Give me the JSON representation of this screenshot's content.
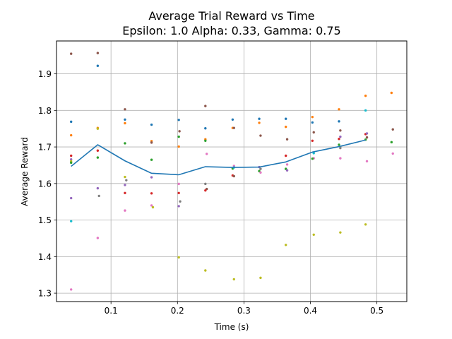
{
  "chart_data": {
    "type": "scatter",
    "title_lines": [
      "Average Trial Reward vs Time",
      "Epsilon: 1.0 Alpha: 0.33, Gamma: 0.75"
    ],
    "xlabel": "Time (s)",
    "ylabel": "Average Reward",
    "xlim": [
      0.018,
      0.545
    ],
    "ylim": [
      1.277,
      1.99
    ],
    "xticks": [
      0.1,
      0.2,
      0.3,
      0.4,
      0.5
    ],
    "yticks": [
      1.3,
      1.4,
      1.5,
      1.6,
      1.7,
      1.8,
      1.9
    ],
    "xtick_labels": [
      "0.1",
      "0.2",
      "0.3",
      "0.4",
      "0.5"
    ],
    "ytick_labels": [
      "1.3",
      "1.4",
      "1.5",
      "1.6",
      "1.7",
      "1.8",
      "1.9"
    ],
    "grid": true,
    "line_color": "#1f77b4",
    "mean_line": {
      "x": [
        0.04,
        0.08,
        0.121,
        0.161,
        0.202,
        0.242,
        0.283,
        0.323,
        0.363,
        0.403,
        0.443,
        0.483
      ],
      "y": [
        1.647,
        1.706,
        1.662,
        1.628,
        1.624,
        1.646,
        1.644,
        1.645,
        1.659,
        1.686,
        1.701,
        1.719
      ]
    },
    "scatter_points": [
      {
        "x": 0.04,
        "y": 1.955,
        "color": "#8c564b"
      },
      {
        "x": 0.04,
        "y": 1.769,
        "color": "#1f77b4"
      },
      {
        "x": 0.04,
        "y": 1.732,
        "color": "#ff7f0e"
      },
      {
        "x": 0.04,
        "y": 1.676,
        "color": "#d62728"
      },
      {
        "x": 0.04,
        "y": 1.666,
        "color": "#9467bd"
      },
      {
        "x": 0.04,
        "y": 1.661,
        "color": "#bcbd22"
      },
      {
        "x": 0.04,
        "y": 1.657,
        "color": "#2ca02c"
      },
      {
        "x": 0.04,
        "y": 1.56,
        "color": "#9467bd"
      },
      {
        "x": 0.04,
        "y": 1.497,
        "color": "#17becf"
      },
      {
        "x": 0.04,
        "y": 1.31,
        "color": "#e377c2"
      },
      {
        "x": 0.08,
        "y": 1.957,
        "color": "#8c564b"
      },
      {
        "x": 0.08,
        "y": 1.922,
        "color": "#1f77b4"
      },
      {
        "x": 0.08,
        "y": 1.752,
        "color": "#ff7f0e"
      },
      {
        "x": 0.08,
        "y": 1.75,
        "color": "#bcbd22"
      },
      {
        "x": 0.08,
        "y": 1.69,
        "color": "#d62728"
      },
      {
        "x": 0.08,
        "y": 1.671,
        "color": "#2ca02c"
      },
      {
        "x": 0.08,
        "y": 1.587,
        "color": "#9467bd"
      },
      {
        "x": 0.082,
        "y": 1.566,
        "color": "#7f7f7f"
      },
      {
        "x": 0.08,
        "y": 1.451,
        "color": "#e377c2"
      },
      {
        "x": 0.121,
        "y": 1.803,
        "color": "#8c564b"
      },
      {
        "x": 0.121,
        "y": 1.775,
        "color": "#1f77b4"
      },
      {
        "x": 0.121,
        "y": 1.765,
        "color": "#ff7f0e"
      },
      {
        "x": 0.121,
        "y": 1.71,
        "color": "#2ca02c"
      },
      {
        "x": 0.121,
        "y": 1.618,
        "color": "#bcbd22"
      },
      {
        "x": 0.123,
        "y": 1.609,
        "color": "#7f7f7f"
      },
      {
        "x": 0.121,
        "y": 1.596,
        "color": "#9467bd"
      },
      {
        "x": 0.121,
        "y": 1.574,
        "color": "#d62728"
      },
      {
        "x": 0.121,
        "y": 1.526,
        "color": "#e377c2"
      },
      {
        "x": 0.161,
        "y": 1.761,
        "color": "#1f77b4"
      },
      {
        "x": 0.161,
        "y": 1.716,
        "color": "#ff7f0e"
      },
      {
        "x": 0.161,
        "y": 1.712,
        "color": "#8c564b"
      },
      {
        "x": 0.161,
        "y": 1.665,
        "color": "#2ca02c"
      },
      {
        "x": 0.161,
        "y": 1.617,
        "color": "#9467bd"
      },
      {
        "x": 0.161,
        "y": 1.573,
        "color": "#d62728"
      },
      {
        "x": 0.161,
        "y": 1.54,
        "color": "#e377c2"
      },
      {
        "x": 0.163,
        "y": 1.535,
        "color": "#bcbd22"
      },
      {
        "x": 0.202,
        "y": 1.774,
        "color": "#1f77b4"
      },
      {
        "x": 0.203,
        "y": 1.743,
        "color": "#8c564b"
      },
      {
        "x": 0.202,
        "y": 1.728,
        "color": "#2ca02c"
      },
      {
        "x": 0.202,
        "y": 1.701,
        "color": "#ff7f0e"
      },
      {
        "x": 0.202,
        "y": 1.599,
        "color": "#e377c2"
      },
      {
        "x": 0.202,
        "y": 1.574,
        "color": "#d62728"
      },
      {
        "x": 0.204,
        "y": 1.551,
        "color": "#7f7f7f"
      },
      {
        "x": 0.202,
        "y": 1.538,
        "color": "#9467bd"
      },
      {
        "x": 0.202,
        "y": 1.398,
        "color": "#bcbd22"
      },
      {
        "x": 0.242,
        "y": 1.812,
        "color": "#8c564b"
      },
      {
        "x": 0.242,
        "y": 1.751,
        "color": "#1f77b4"
      },
      {
        "x": 0.242,
        "y": 1.721,
        "color": "#ff7f0e"
      },
      {
        "x": 0.242,
        "y": 1.717,
        "color": "#2ca02c"
      },
      {
        "x": 0.244,
        "y": 1.681,
        "color": "#e377c2"
      },
      {
        "x": 0.242,
        "y": 1.599,
        "color": "#7f7f7f"
      },
      {
        "x": 0.244,
        "y": 1.585,
        "color": "#8c564b"
      },
      {
        "x": 0.242,
        "y": 1.581,
        "color": "#d62728"
      },
      {
        "x": 0.242,
        "y": 1.362,
        "color": "#bcbd22"
      },
      {
        "x": 0.283,
        "y": 1.775,
        "color": "#1f77b4"
      },
      {
        "x": 0.283,
        "y": 1.752,
        "color": "#ff7f0e"
      },
      {
        "x": 0.285,
        "y": 1.752,
        "color": "#8c564b"
      },
      {
        "x": 0.285,
        "y": 1.648,
        "color": "#e377c2"
      },
      {
        "x": 0.283,
        "y": 1.641,
        "color": "#2ca02c"
      },
      {
        "x": 0.285,
        "y": 1.644,
        "color": "#17becf"
      },
      {
        "x": 0.283,
        "y": 1.622,
        "color": "#d62728"
      },
      {
        "x": 0.285,
        "y": 1.62,
        "color": "#8c564b"
      },
      {
        "x": 0.285,
        "y": 1.338,
        "color": "#bcbd22"
      },
      {
        "x": 0.323,
        "y": 1.777,
        "color": "#1f77b4"
      },
      {
        "x": 0.323,
        "y": 1.766,
        "color": "#ff7f0e"
      },
      {
        "x": 0.325,
        "y": 1.731,
        "color": "#8c564b"
      },
      {
        "x": 0.323,
        "y": 1.645,
        "color": "#9467bd"
      },
      {
        "x": 0.325,
        "y": 1.64,
        "color": "#7f7f7f"
      },
      {
        "x": 0.323,
        "y": 1.634,
        "color": "#2ca02c"
      },
      {
        "x": 0.325,
        "y": 1.63,
        "color": "#e377c2"
      },
      {
        "x": 0.325,
        "y": 1.342,
        "color": "#bcbd22"
      },
      {
        "x": 0.363,
        "y": 1.777,
        "color": "#1f77b4"
      },
      {
        "x": 0.363,
        "y": 1.755,
        "color": "#ff7f0e"
      },
      {
        "x": 0.365,
        "y": 1.721,
        "color": "#8c564b"
      },
      {
        "x": 0.363,
        "y": 1.676,
        "color": "#d62728"
      },
      {
        "x": 0.365,
        "y": 1.652,
        "color": "#e377c2"
      },
      {
        "x": 0.363,
        "y": 1.64,
        "color": "#2ca02c"
      },
      {
        "x": 0.365,
        "y": 1.636,
        "color": "#9467bd"
      },
      {
        "x": 0.363,
        "y": 1.432,
        "color": "#bcbd22"
      },
      {
        "x": 0.403,
        "y": 1.782,
        "color": "#ff7f0e"
      },
      {
        "x": 0.403,
        "y": 1.767,
        "color": "#1f77b4"
      },
      {
        "x": 0.405,
        "y": 1.74,
        "color": "#8c564b"
      },
      {
        "x": 0.403,
        "y": 1.717,
        "color": "#d62728"
      },
      {
        "x": 0.405,
        "y": 1.683,
        "color": "#17becf"
      },
      {
        "x": 0.405,
        "y": 1.669,
        "color": "#e377c2"
      },
      {
        "x": 0.403,
        "y": 1.668,
        "color": "#2ca02c"
      },
      {
        "x": 0.405,
        "y": 1.46,
        "color": "#bcbd22"
      },
      {
        "x": 0.443,
        "y": 1.803,
        "color": "#ff7f0e"
      },
      {
        "x": 0.443,
        "y": 1.77,
        "color": "#1f77b4"
      },
      {
        "x": 0.445,
        "y": 1.745,
        "color": "#8c564b"
      },
      {
        "x": 0.443,
        "y": 1.722,
        "color": "#d62728"
      },
      {
        "x": 0.445,
        "y": 1.728,
        "color": "#9467bd"
      },
      {
        "x": 0.443,
        "y": 1.706,
        "color": "#2ca02c"
      },
      {
        "x": 0.445,
        "y": 1.697,
        "color": "#7f7f7f"
      },
      {
        "x": 0.445,
        "y": 1.669,
        "color": "#e377c2"
      },
      {
        "x": 0.445,
        "y": 1.466,
        "color": "#bcbd22"
      },
      {
        "x": 0.483,
        "y": 1.84,
        "color": "#ff7f0e"
      },
      {
        "x": 0.483,
        "y": 1.8,
        "color": "#17becf"
      },
      {
        "x": 0.483,
        "y": 1.735,
        "color": "#d62728"
      },
      {
        "x": 0.485,
        "y": 1.737,
        "color": "#9467bd"
      },
      {
        "x": 0.485,
        "y": 1.726,
        "color": "#8c564b"
      },
      {
        "x": 0.483,
        "y": 1.72,
        "color": "#2ca02c"
      },
      {
        "x": 0.485,
        "y": 1.661,
        "color": "#e377c2"
      },
      {
        "x": 0.483,
        "y": 1.488,
        "color": "#bcbd22"
      },
      {
        "x": 0.522,
        "y": 1.848,
        "color": "#ff7f0e"
      },
      {
        "x": 0.524,
        "y": 1.748,
        "color": "#8c564b"
      },
      {
        "x": 0.522,
        "y": 1.713,
        "color": "#2ca02c"
      },
      {
        "x": 0.524,
        "y": 1.682,
        "color": "#e377c2"
      }
    ]
  }
}
